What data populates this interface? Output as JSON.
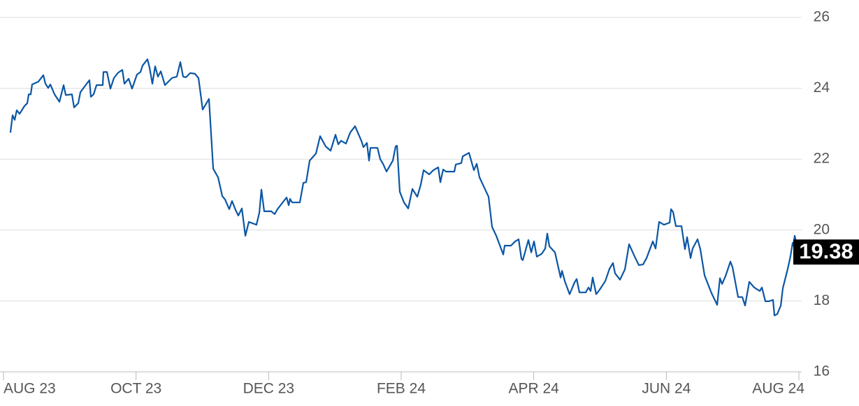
{
  "chart_data": {
    "type": "line",
    "color": "#0b56a4",
    "grid": true,
    "xlim": [
      0,
      12
    ],
    "xticks": [
      {
        "value": 0,
        "label": "AUG 23"
      },
      {
        "value": 2,
        "label": "OCT 23"
      },
      {
        "value": 4,
        "label": "DEC 23"
      },
      {
        "value": 6,
        "label": "FEB 24"
      },
      {
        "value": 8,
        "label": "APR 24"
      },
      {
        "value": 10,
        "label": "JUN 24"
      },
      {
        "value": 12,
        "label": "AUG 24"
      }
    ],
    "ylim": [
      16,
      26
    ],
    "yticks": [
      16,
      18,
      20,
      22,
      24,
      26
    ],
    "x": [
      0.105,
      0.137,
      0.169,
      0.2,
      0.243,
      0.316,
      0.359,
      0.38,
      0.411,
      0.432,
      0.527,
      0.601,
      0.633,
      0.675,
      0.707,
      0.77,
      0.844,
      0.907,
      0.939,
      1.033,
      1.065,
      1.128,
      1.16,
      1.255,
      1.297,
      1.318,
      1.36,
      1.403,
      1.497,
      1.508,
      1.561,
      1.613,
      1.666,
      1.729,
      1.793,
      1.824,
      1.888,
      1.94,
      2.014,
      2.067,
      2.098,
      2.172,
      2.204,
      2.246,
      2.288,
      2.33,
      2.373,
      2.436,
      2.541,
      2.615,
      2.668,
      2.71,
      2.752,
      2.816,
      2.889,
      2.942,
      3.005,
      3.1,
      3.164,
      3.237,
      3.301,
      3.343,
      3.406,
      3.448,
      3.501,
      3.543,
      3.596,
      3.649,
      3.701,
      3.817,
      3.86,
      3.891,
      3.933,
      4.039,
      4.091,
      4.134,
      4.229,
      4.271,
      4.303,
      4.323,
      4.355,
      4.471,
      4.524,
      4.566,
      4.619,
      4.714,
      4.777,
      4.861,
      4.935,
      5.009,
      5.051,
      5.093,
      5.167,
      5.23,
      5.304,
      5.399,
      5.431,
      5.483,
      5.515,
      5.536,
      5.642,
      5.684,
      5.726,
      5.779,
      5.874,
      5.916,
      5.937,
      5.979,
      6.042,
      6.106,
      6.169,
      6.243,
      6.295,
      6.338,
      6.422,
      6.485,
      6.559,
      6.591,
      6.633,
      6.675,
      6.802,
      6.823,
      6.907,
      6.928,
      7.023,
      7.097,
      7.139,
      7.181,
      7.318,
      7.371,
      7.434,
      7.54,
      7.561,
      7.656,
      7.719,
      7.772,
      7.814,
      7.835,
      7.919,
      7.962,
      8.004,
      8.046,
      8.12,
      8.173,
      8.204,
      8.236,
      8.32,
      8.405,
      8.426,
      8.468,
      8.541,
      8.615,
      8.647,
      8.689,
      8.784,
      8.826,
      8.858,
      8.889,
      8.942,
      8.995,
      9.079,
      9.143,
      9.195,
      9.227,
      9.301,
      9.375,
      9.438,
      9.533,
      9.586,
      9.649,
      9.702,
      9.796,
      9.838,
      9.891,
      9.965,
      10.05,
      10.071,
      10.102,
      10.144,
      10.229,
      10.281,
      10.313,
      10.366,
      10.397,
      10.471,
      10.513,
      10.577,
      10.682,
      10.767,
      10.809,
      10.841,
      10.893,
      10.967,
      10.999,
      11.083,
      11.146,
      11.188,
      11.252,
      11.326,
      11.41,
      11.442,
      11.494,
      11.547,
      11.61,
      11.631,
      11.674,
      11.727,
      11.758,
      11.832,
      11.874,
      11.906,
      11.916,
      11.937,
      11.99
    ],
    "values": [
      22.75,
      23.24,
      23.11,
      23.38,
      23.28,
      23.5,
      23.58,
      23.83,
      23.83,
      24.11,
      24.19,
      24.37,
      24.13,
      24.01,
      24.11,
      23.83,
      23.62,
      24.09,
      23.81,
      23.83,
      23.46,
      23.58,
      23.89,
      24.13,
      24.23,
      23.76,
      23.83,
      24.09,
      24.09,
      24.46,
      24.46,
      23.99,
      24.29,
      24.44,
      24.52,
      24.13,
      24.27,
      23.99,
      24.39,
      24.46,
      24.64,
      24.82,
      24.58,
      24.13,
      24.62,
      24.33,
      24.48,
      24.09,
      24.29,
      24.33,
      24.74,
      24.33,
      24.31,
      24.43,
      24.41,
      24.29,
      23.4,
      23.7,
      21.73,
      21.49,
      20.96,
      20.86,
      20.59,
      20.82,
      20.57,
      20.41,
      20.61,
      19.84,
      20.23,
      20.15,
      20.49,
      21.14,
      20.53,
      20.53,
      20.45,
      20.59,
      20.82,
      20.92,
      20.7,
      20.88,
      20.78,
      20.78,
      21.33,
      21.35,
      21.96,
      22.16,
      22.65,
      22.36,
      22.24,
      22.69,
      22.42,
      22.52,
      22.44,
      22.75,
      22.93,
      22.52,
      22.34,
      22.46,
      21.96,
      22.32,
      22.32,
      22.0,
      21.87,
      21.65,
      21.96,
      22.36,
      22.38,
      21.08,
      20.78,
      20.61,
      21.16,
      20.94,
      21.28,
      21.69,
      21.57,
      21.69,
      21.77,
      21.35,
      21.71,
      21.65,
      21.65,
      21.85,
      21.89,
      22.08,
      22.18,
      21.69,
      21.87,
      21.49,
      20.94,
      20.09,
      19.84,
      19.31,
      19.56,
      19.56,
      19.68,
      19.74,
      19.19,
      19.15,
      19.72,
      19.37,
      19.68,
      19.25,
      19.33,
      19.48,
      19.9,
      19.54,
      19.37,
      18.66,
      18.85,
      18.56,
      18.19,
      18.52,
      18.62,
      18.24,
      18.24,
      18.38,
      18.28,
      18.66,
      18.19,
      18.32,
      18.56,
      18.91,
      19.07,
      18.78,
      18.6,
      18.89,
      19.6,
      19.21,
      19.01,
      19.03,
      19.21,
      19.68,
      19.48,
      20.23,
      20.15,
      20.21,
      20.59,
      20.51,
      20.11,
      20.11,
      19.46,
      19.8,
      19.21,
      19.48,
      19.74,
      19.46,
      18.72,
      18.22,
      17.89,
      18.64,
      18.48,
      18.7,
      19.11,
      18.95,
      18.11,
      18.11,
      17.87,
      18.54,
      18.38,
      18.28,
      18.38,
      17.99,
      17.99,
      18.03,
      17.59,
      17.63,
      17.87,
      18.36,
      18.91,
      19.27,
      19.64,
      19.56,
      19.84,
      19.38
    ]
  }
}
